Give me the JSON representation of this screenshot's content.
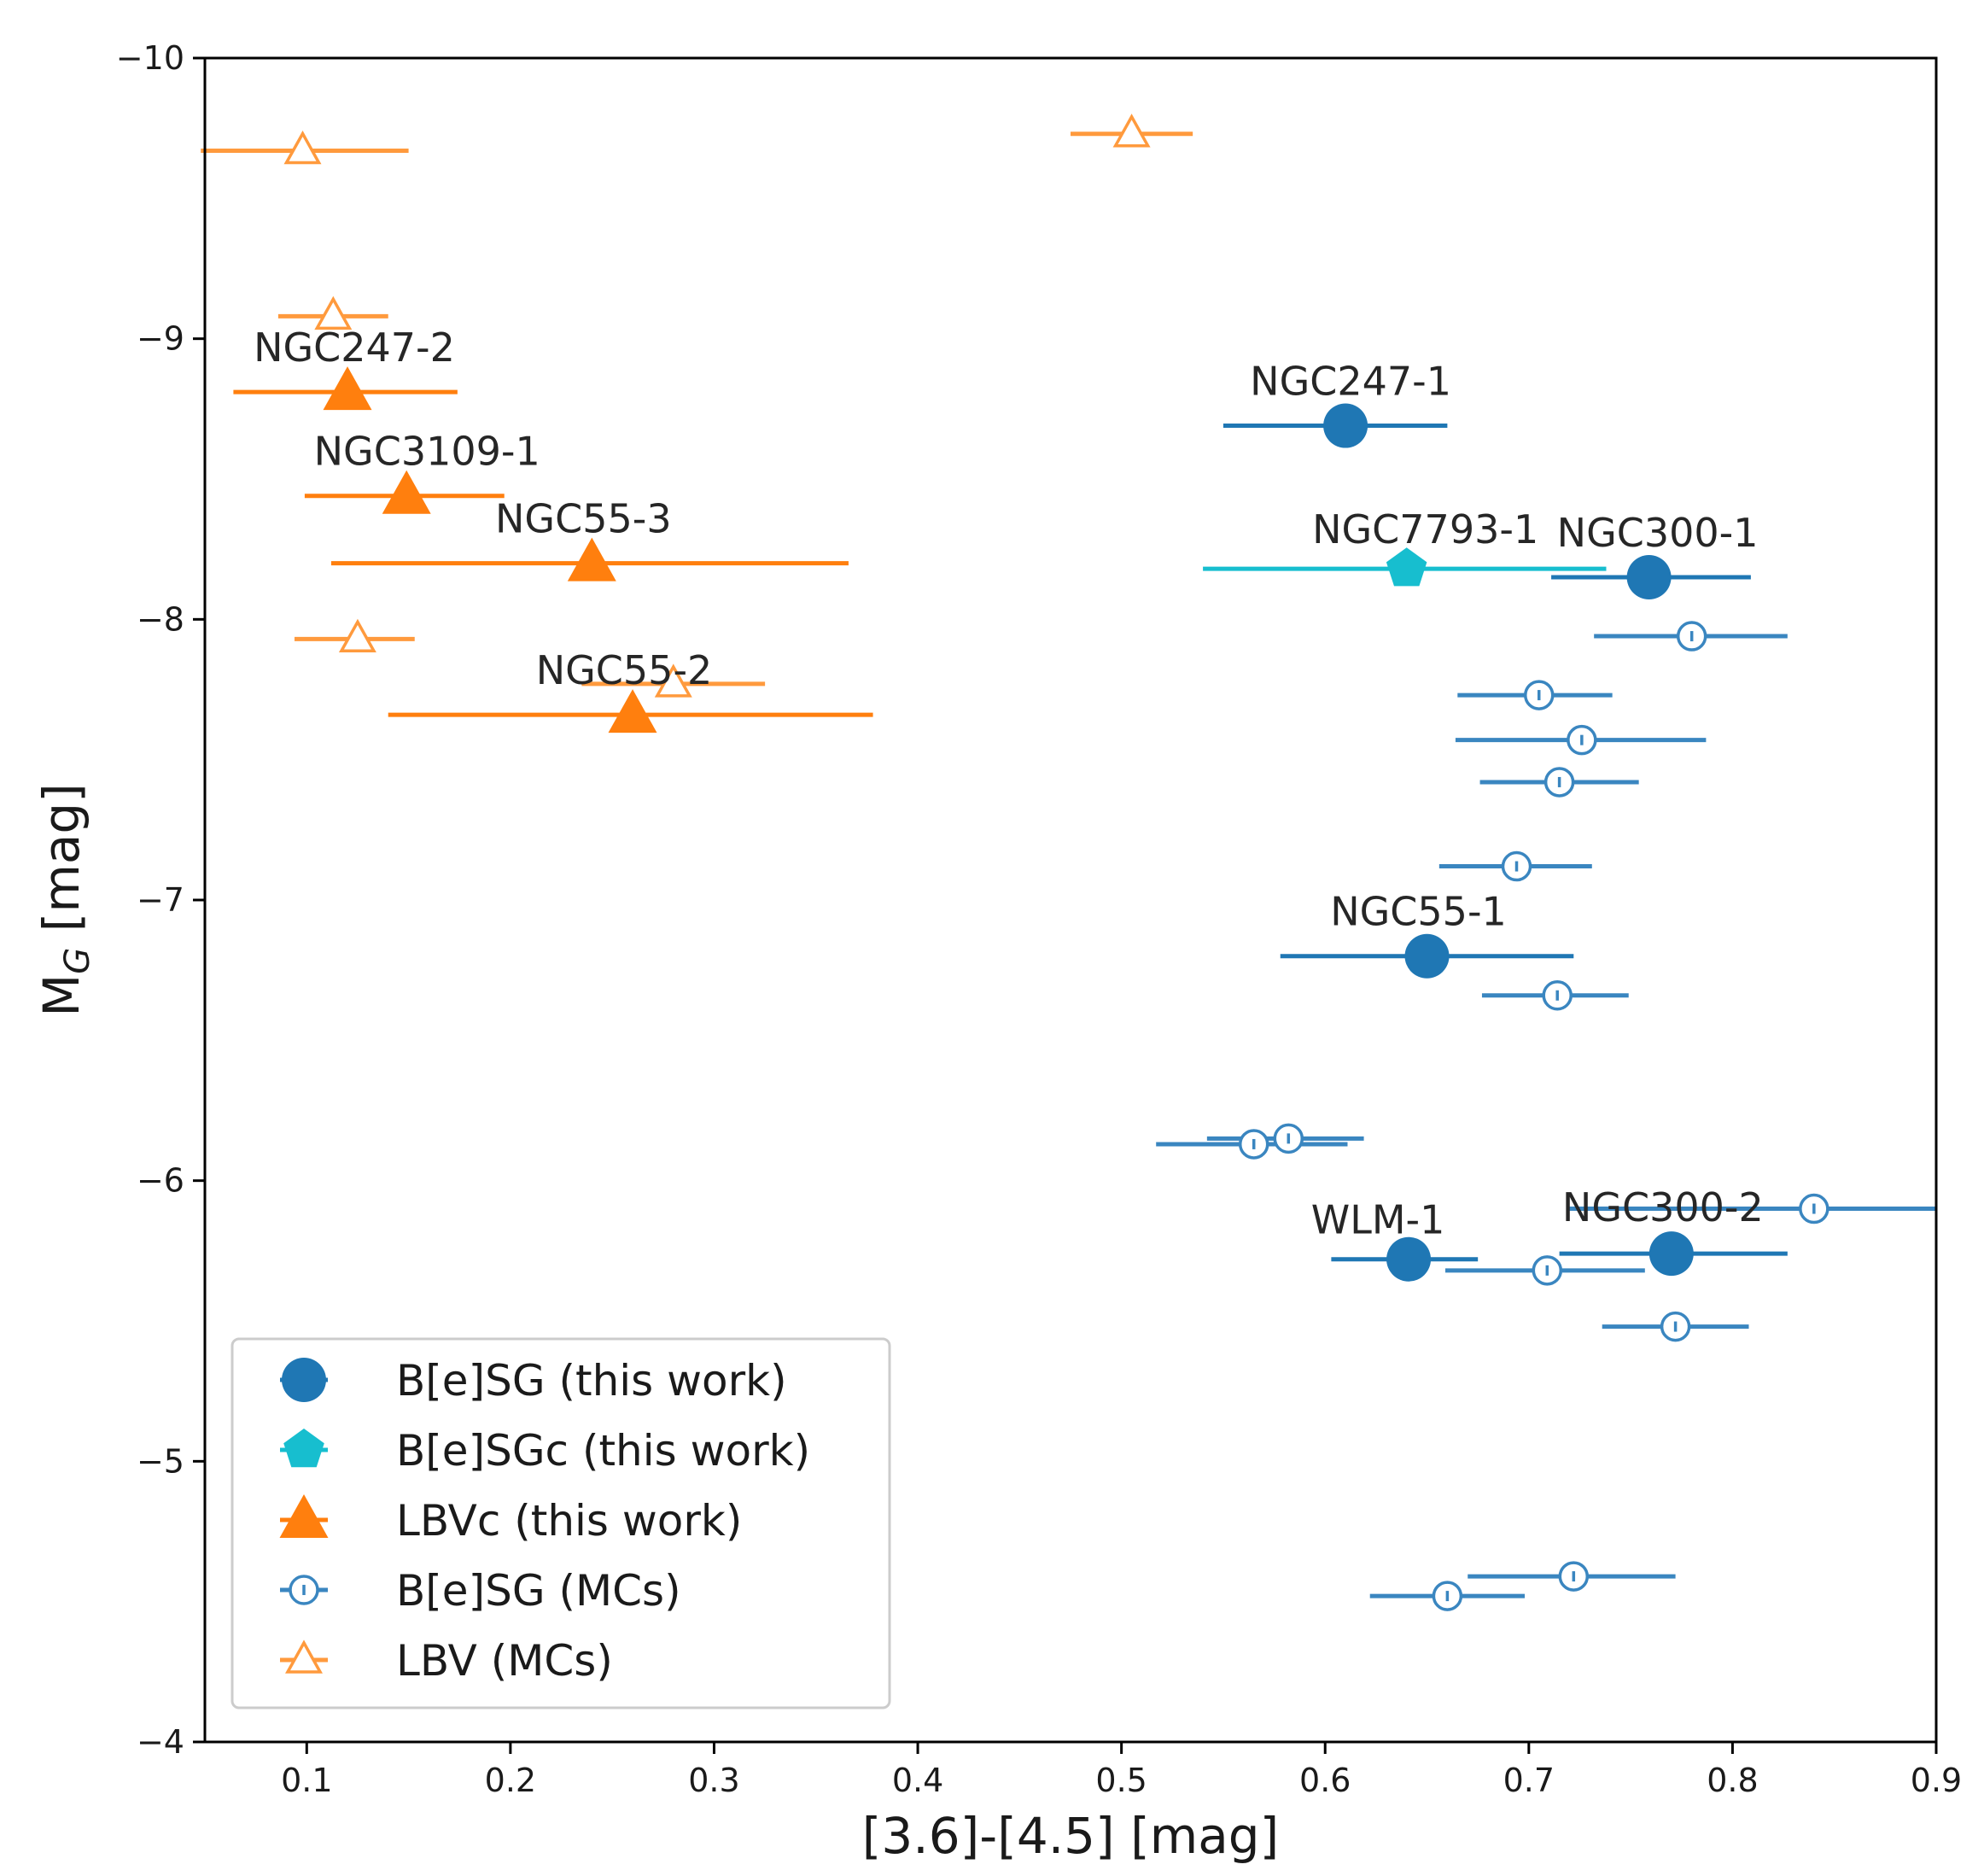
{
  "chart_data": {
    "type": "scatter",
    "title": "",
    "xlabel": "[3.6]-[4.5] [mag]",
    "ylabel_main": "M",
    "ylabel_sub": "G",
    "ylabel_tail": " [mag]",
    "xlim": [
      0.05,
      0.9
    ],
    "ylim": [
      -10,
      -4
    ],
    "y_inverted": true,
    "grid": false,
    "legend_position": "lower-left",
    "x_ticks": [
      0.1,
      0.2,
      0.3,
      0.4,
      0.5,
      0.6,
      0.7,
      0.8,
      0.9
    ],
    "x_tick_labels": [
      "0.1",
      "0.2",
      "0.3",
      "0.4",
      "0.5",
      "0.6",
      "0.7",
      "0.8",
      "0.9"
    ],
    "y_ticks": [
      -10,
      -9,
      -8,
      -7,
      -6,
      -5,
      -4
    ],
    "y_tick_labels": [
      "−10",
      "−9",
      "−8",
      "−7",
      "−6",
      "−5",
      "−4"
    ],
    "colors": {
      "blue": "#1f77b4",
      "cyan": "#17becf",
      "orange": "#ff7f0e",
      "mc_blue": "#3a86c0",
      "mc_orange": "#ff9a3d"
    },
    "series": [
      {
        "name": "B[e]SG (this work)",
        "marker": "circle-filled",
        "color": "blue",
        "points": [
          {
            "x": 0.61,
            "y": -8.69,
            "xerr": [
              0.06,
              0.05
            ],
            "label": "NGC247-1"
          },
          {
            "x": 0.759,
            "y": -8.15,
            "xerr": [
              0.048,
              0.05
            ],
            "label": "NGC300-1"
          },
          {
            "x": 0.65,
            "y": -6.8,
            "xerr": [
              0.072,
              0.072
            ],
            "label": "NGC55-1"
          },
          {
            "x": 0.641,
            "y": -5.72,
            "xerr": [
              0.038,
              0.034
            ],
            "label": "WLM-1"
          },
          {
            "x": 0.77,
            "y": -5.74,
            "xerr": [
              0.055,
              0.057
            ],
            "label": "NGC300-2"
          }
        ]
      },
      {
        "name": "B[e]SGc (this work)",
        "marker": "pentagon-filled",
        "color": "cyan",
        "points": [
          {
            "x": 0.64,
            "y": -8.18,
            "xerr": [
              0.1,
              0.098
            ],
            "label": "NGC7793-1"
          }
        ]
      },
      {
        "name": "LBVc (this work)",
        "marker": "triangle-filled",
        "color": "orange",
        "points": [
          {
            "x": 0.12,
            "y": -8.81,
            "xerr": [
              0.056,
              0.054
            ],
            "label": "NGC247-2"
          },
          {
            "x": 0.149,
            "y": -8.44,
            "xerr": [
              0.05,
              0.048
            ],
            "label": "NGC3109-1"
          },
          {
            "x": 0.24,
            "y": -8.2,
            "xerr": [
              0.128,
              0.126
            ],
            "label": "NGC55-3"
          },
          {
            "x": 0.26,
            "y": -7.66,
            "xerr": [
              0.12,
              0.118
            ],
            "label": "NGC55-2"
          }
        ]
      },
      {
        "name": "B[e]SG (MCs)",
        "marker": "circle-open",
        "color": "mc_blue",
        "points": [
          {
            "x": 0.78,
            "y": -7.94,
            "xerr": [
              0.048,
              0.047
            ]
          },
          {
            "x": 0.705,
            "y": -7.73,
            "xerr": [
              0.04,
              0.036
            ]
          },
          {
            "x": 0.726,
            "y": -7.57,
            "xerr": [
              0.062,
              0.061
            ]
          },
          {
            "x": 0.715,
            "y": -7.42,
            "xerr": [
              0.039,
              0.039
            ]
          },
          {
            "x": 0.694,
            "y": -7.12,
            "xerr": [
              0.038,
              0.037
            ]
          },
          {
            "x": 0.714,
            "y": -6.66,
            "xerr": [
              0.037,
              0.035
            ]
          },
          {
            "x": 0.565,
            "y": -6.13,
            "xerr": [
              0.048,
              0.046
            ]
          },
          {
            "x": 0.582,
            "y": -6.15,
            "xerr": [
              0.04,
              0.037
            ]
          },
          {
            "x": 0.84,
            "y": -5.9,
            "xerr": [
              0.12,
              0.06
            ]
          },
          {
            "x": 0.709,
            "y": -5.68,
            "xerr": [
              0.05,
              0.048
            ]
          },
          {
            "x": 0.772,
            "y": -5.48,
            "xerr": [
              0.036,
              0.036
            ]
          },
          {
            "x": 0.722,
            "y": -4.59,
            "xerr": [
              0.052,
              0.05
            ]
          },
          {
            "x": 0.66,
            "y": -4.52,
            "xerr": [
              0.038,
              0.038
            ]
          }
        ]
      },
      {
        "name": "LBV (MCs)",
        "marker": "triangle-open",
        "color": "mc_orange",
        "points": [
          {
            "x": 0.098,
            "y": -9.67,
            "xerr": [
              0.05,
              0.052
            ]
          },
          {
            "x": 0.505,
            "y": -9.73,
            "xerr": [
              0.03,
              0.03
            ]
          },
          {
            "x": 0.113,
            "y": -9.08,
            "xerr": [
              0.027,
              0.027
            ]
          },
          {
            "x": 0.125,
            "y": -7.93,
            "xerr": [
              0.031,
              0.028
            ]
          },
          {
            "x": 0.28,
            "y": -7.77,
            "xerr": [
              0.045,
              0.045
            ]
          }
        ]
      }
    ]
  }
}
